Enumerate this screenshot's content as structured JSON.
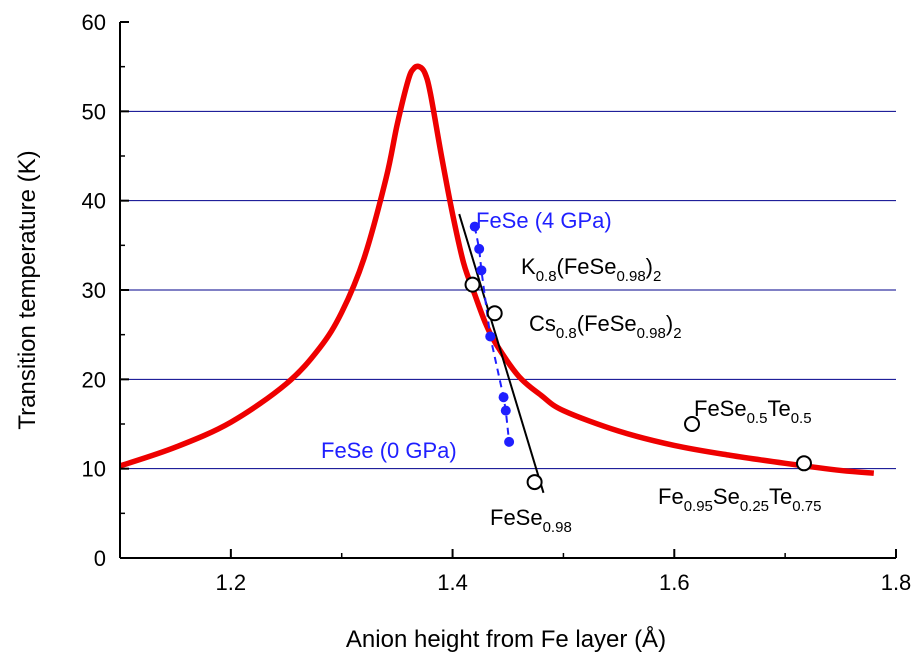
{
  "chart_data": {
    "type": "line",
    "title": "",
    "xlabel": "Anion height from Fe layer (Å)",
    "ylabel": "Transition temperature (K)",
    "xlim": [
      1.1,
      1.8
    ],
    "ylim": [
      0,
      60
    ],
    "xticks": [
      1.2,
      1.4,
      1.6,
      1.8
    ],
    "yticks": [
      0,
      10,
      20,
      30,
      40,
      50,
      60
    ],
    "xtick_labels": [
      "1.2",
      "1.4",
      "1.6",
      "1.8"
    ],
    "ytick_labels": [
      "0",
      "10",
      "20",
      "30",
      "40",
      "50",
      "60"
    ],
    "grid": "horizontal",
    "colors": {
      "curve": "#ee0000",
      "grid": "#00008b",
      "pressure": "#1f1fff",
      "fit": "#000000"
    },
    "series": [
      {
        "style": "thick-red-line",
        "x": [
          1.1,
          1.15,
          1.2,
          1.25,
          1.28,
          1.3,
          1.32,
          1.34,
          1.35,
          1.36,
          1.365,
          1.37,
          1.375,
          1.38,
          1.39,
          1.4,
          1.41,
          1.42,
          1.43,
          1.44,
          1.46,
          1.48,
          1.5,
          1.55,
          1.6,
          1.65,
          1.7,
          1.75,
          1.78
        ],
        "y": [
          10.3,
          12.4,
          15.2,
          19.5,
          23.5,
          27.5,
          33.5,
          42.5,
          48.5,
          53.5,
          54.8,
          55.0,
          54.3,
          52.0,
          45.0,
          38.5,
          33.0,
          29.5,
          26.2,
          23.8,
          20.3,
          18.2,
          16.5,
          14.2,
          12.6,
          11.5,
          10.6,
          9.8,
          9.5
        ]
      },
      {
        "style": "blue-dashed-dots",
        "x": [
          1.42,
          1.424,
          1.426,
          1.434,
          1.446,
          1.448,
          1.451
        ],
        "y": [
          37.1,
          34.6,
          32.2,
          24.8,
          18.0,
          16.5,
          13.0
        ]
      },
      {
        "style": "black-fit-line",
        "x": [
          1.406,
          1.482
        ],
        "y": [
          38.5,
          7.3
        ]
      },
      {
        "style": "open-circles",
        "x": [
          1.418,
          1.438,
          1.474,
          1.616,
          1.717
        ],
        "y": [
          30.6,
          27.4,
          8.5,
          15.0,
          10.6
        ]
      }
    ],
    "annotations": {
      "fese_4gpa": "FeSe (4 GPa)",
      "fese_0gpa": "FeSe (0 GPa)",
      "k_label": {
        "a": "K",
        "b": "0.8",
        "c": "(FeSe",
        "d": "0.98",
        "e": ")",
        "f": "2"
      },
      "cs_label": {
        "a": "Cs",
        "b": "0.8",
        "c": "(FeSe",
        "d": "0.98",
        "e": ")",
        "f": "2"
      },
      "fese098_label": {
        "a": "FeSe",
        "b": "0.98"
      },
      "fesete_label": {
        "a": "FeSe",
        "b": "0.5",
        "c": "Te",
        "d": "0.5"
      },
      "fe095_label": {
        "a": "Fe",
        "b": "0.95",
        "c": "Se",
        "d": "0.25",
        "e": "Te",
        "f": "0.75"
      }
    }
  }
}
